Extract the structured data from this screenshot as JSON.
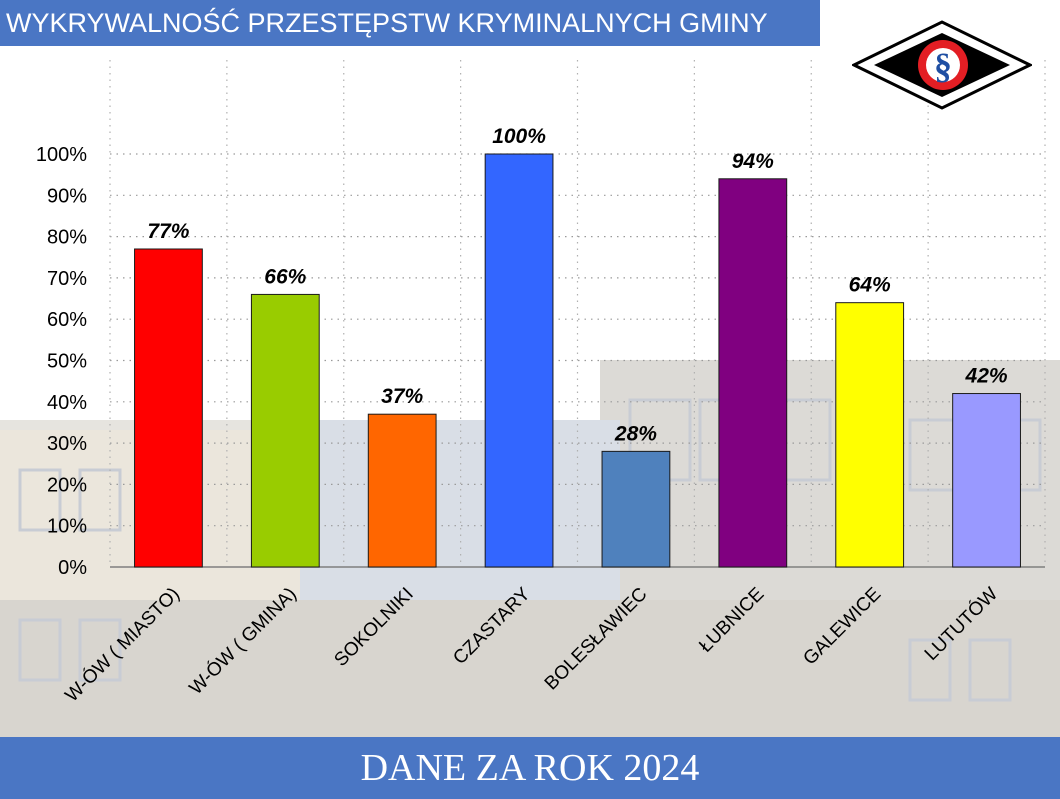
{
  "header": {
    "title": "WYKRYWALNOŚĆ PRZESTĘPSTW KRYMINALNYCH GMINY"
  },
  "footer": {
    "text": "DANE ZA ROK 2024"
  },
  "logo": {
    "icon": "section-sign-logo",
    "glyph": "§"
  },
  "chart_data": {
    "type": "bar",
    "categories": [
      "W-ÓW ( MIASTO)",
      "W-ÓW ( GMINA)",
      "SOKOLNIKI",
      "CZASTARY",
      "BOLESŁAWIEC",
      "ŁUBNICE",
      "GALEWICE",
      "LUTUTÓW"
    ],
    "values": [
      77,
      66,
      37,
      100,
      28,
      94,
      64,
      42
    ],
    "value_labels": [
      "77%",
      "66%",
      "37%",
      "100%",
      "28%",
      "94%",
      "64%",
      "42%"
    ],
    "colors": [
      "#ff0000",
      "#99cc00",
      "#ff6600",
      "#3366ff",
      "#4f81bd",
      "#800080",
      "#ffff00",
      "#9999ff"
    ],
    "ylim": [
      0,
      100
    ],
    "yticks": [
      "0%",
      "10%",
      "20%",
      "30%",
      "40%",
      "50%",
      "60%",
      "70%",
      "80%",
      "90%",
      "100%"
    ],
    "grid": true,
    "legend": "none"
  }
}
